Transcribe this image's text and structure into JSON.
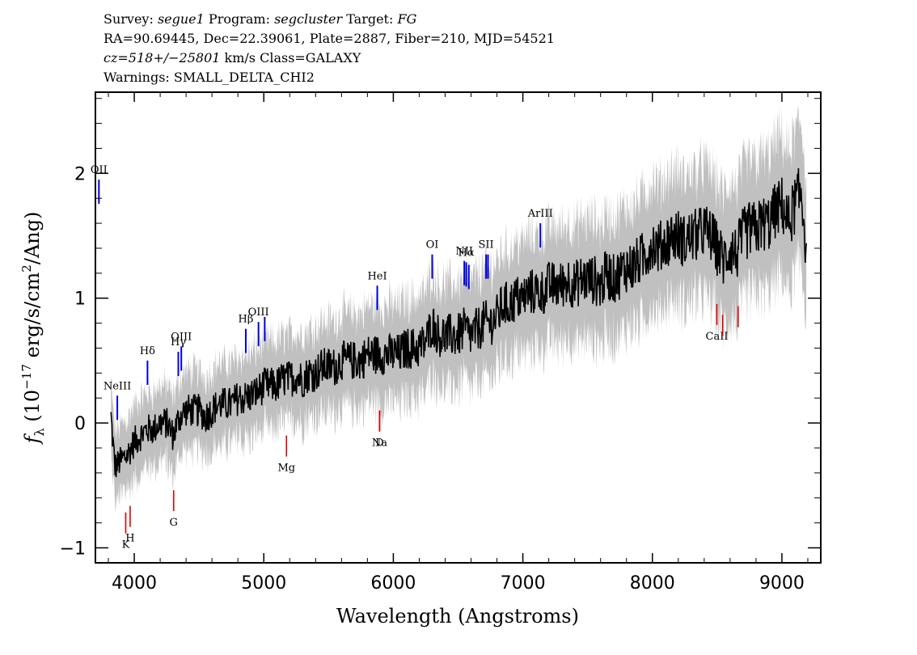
{
  "header": {
    "line1": {
      "survey_label": "Survey:",
      "survey": "segue1",
      "program_label": "Program:",
      "program": "segcluster",
      "target_label": "Target:",
      "target": "FG"
    },
    "line2": "RA=90.69445, Dec=22.39061, Plate=2887, Fiber=210, MJD=54521",
    "line3": {
      "cz": "cz=518+/−25801",
      "rest": " km/s Class=GALAXY"
    },
    "line4": "Warnings: SMALL_DELTA_CHI2"
  },
  "chart_data": {
    "type": "line",
    "xlabel": "Wavelength (Angstroms)",
    "ylabel": "fλ (10⁻¹⁷ erg/s/cm²/Ang)",
    "xlim": [
      3700,
      9300
    ],
    "ylim": [
      -1.12,
      2.65
    ],
    "x_ticks": [
      4000,
      5000,
      6000,
      7000,
      8000,
      9000
    ],
    "y_ticks": [
      -1,
      0,
      1,
      2
    ],
    "y_tick_labels": [
      "−1",
      "0",
      "1",
      "2"
    ],
    "grid": false,
    "colors": {
      "flux": "#000000",
      "error_band": "#c0c0c0",
      "emission": "#0000dd",
      "absorption": "#dd0000"
    },
    "series": [
      {
        "role": "smoothed-flux",
        "x": [
          3820,
          3850,
          3900,
          3950,
          4000,
          4050,
          4100,
          4150,
          4200,
          4250,
          4300,
          4350,
          4400,
          4450,
          4500,
          4550,
          4600,
          4650,
          4700,
          4750,
          4800,
          4850,
          4900,
          4950,
          5000,
          5050,
          5100,
          5150,
          5200,
          5250,
          5300,
          5350,
          5400,
          5450,
          5500,
          5550,
          5600,
          5650,
          5700,
          5750,
          5800,
          5850,
          5900,
          5950,
          6000,
          6050,
          6100,
          6150,
          6200,
          6250,
          6300,
          6350,
          6400,
          6450,
          6500,
          6550,
          6600,
          6650,
          6700,
          6750,
          6800,
          6850,
          6900,
          6950,
          7000,
          7050,
          7100,
          7150,
          7200,
          7250,
          7300,
          7350,
          7400,
          7450,
          7500,
          7550,
          7600,
          7650,
          7700,
          7750,
          7800,
          7850,
          7900,
          7950,
          8000,
          8050,
          8100,
          8150,
          8200,
          8250,
          8300,
          8350,
          8400,
          8450,
          8500,
          8550,
          8600,
          8650,
          8700,
          8750,
          8800,
          8850,
          8900,
          8950,
          9000,
          9050,
          9100,
          9150,
          9190
        ],
        "y": [
          0.05,
          -0.35,
          -0.3,
          -0.25,
          -0.15,
          -0.1,
          -0.05,
          -0.05,
          0.0,
          0.0,
          -0.1,
          0.05,
          0.1,
          0.1,
          0.1,
          0.05,
          0.1,
          0.15,
          0.15,
          0.15,
          0.2,
          0.2,
          0.22,
          0.25,
          0.3,
          0.3,
          0.3,
          0.35,
          0.35,
          0.38,
          0.35,
          0.4,
          0.4,
          0.45,
          0.45,
          0.45,
          0.5,
          0.5,
          0.5,
          0.5,
          0.55,
          0.55,
          0.55,
          0.55,
          0.55,
          0.55,
          0.6,
          0.6,
          0.6,
          0.65,
          0.8,
          0.7,
          0.7,
          0.7,
          0.7,
          0.75,
          0.7,
          0.75,
          0.8,
          0.8,
          0.85,
          0.95,
          0.95,
          1.0,
          1.0,
          1.05,
          1.05,
          1.05,
          1.1,
          1.1,
          1.1,
          1.15,
          1.1,
          1.15,
          1.15,
          1.15,
          1.1,
          1.2,
          1.15,
          1.2,
          1.25,
          1.25,
          1.3,
          1.35,
          1.45,
          1.4,
          1.45,
          1.5,
          1.5,
          1.45,
          1.5,
          1.5,
          1.55,
          1.5,
          1.4,
          1.3,
          1.4,
          1.35,
          1.5,
          1.55,
          1.55,
          1.6,
          1.6,
          1.7,
          1.75,
          1.6,
          1.75,
          1.85,
          1.4
        ]
      }
    ],
    "emission_lines": [
      {
        "label": "OII",
        "wave": 3727
      },
      {
        "label": "NeIII",
        "wave": 3869
      },
      {
        "label": "Hδ",
        "wave": 4102
      },
      {
        "label": "Hγ",
        "wave": 4340
      },
      {
        "label": "OIII",
        "wave": 4363
      },
      {
        "label": "Hβ",
        "wave": 4861
      },
      {
        "label": "OIII",
        "wave": 4959
      },
      {
        "label": "OIII",
        "wave": 5007
      },
      {
        "label": "HeI",
        "wave": 5876
      },
      {
        "label": "OI",
        "wave": 6300
      },
      {
        "label": "NII",
        "wave": 6548
      },
      {
        "label": "Hα",
        "wave": 6563
      },
      {
        "label": "NII",
        "wave": 6583
      },
      {
        "label": "SII",
        "wave": 6716
      },
      {
        "label": "SII",
        "wave": 6731
      },
      {
        "label": "ArIII",
        "wave": 7135
      }
    ],
    "absorption_lines": [
      {
        "label": "K",
        "wave": 3934
      },
      {
        "label": "H",
        "wave": 3968
      },
      {
        "label": "G",
        "wave": 4304
      },
      {
        "label": "Mg",
        "wave": 5175
      },
      {
        "label": "Na",
        "wave": 5894
      },
      {
        "label": "D",
        "wave": 5894
      },
      {
        "label": "CaII",
        "wave": 8498
      },
      {
        "label": "CaII",
        "wave": 8542
      },
      {
        "label": "CaII",
        "wave": 8662
      }
    ]
  }
}
